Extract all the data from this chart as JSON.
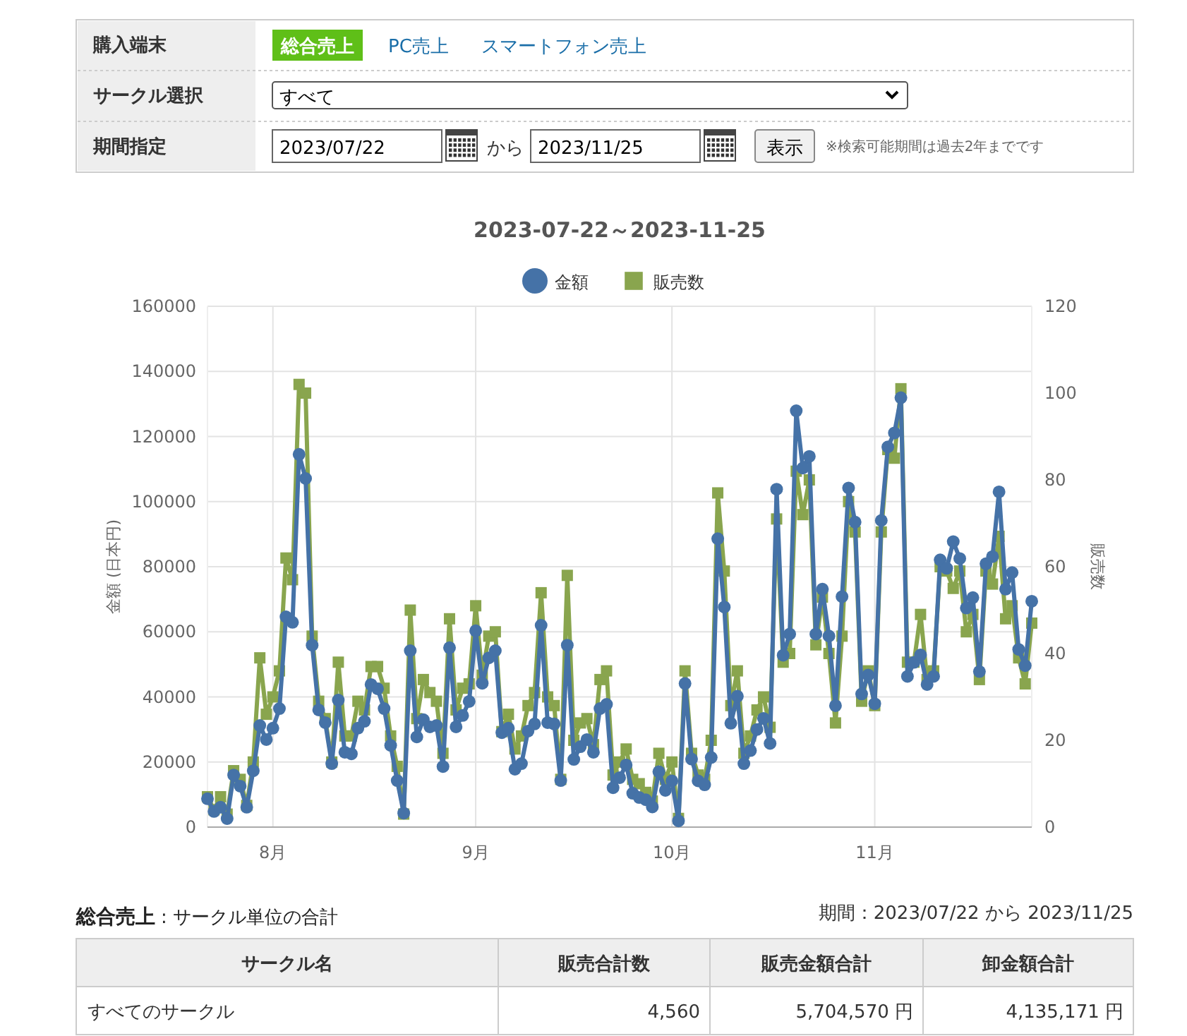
{
  "chart_data": [
    {
      "type": "other",
      "annotations": [
        "購入端末",
        "総合売上",
        "PC売上",
        "スマートフォン売上",
        "サークル選択",
        "すべて",
        "期間指定",
        "2023/07/22",
        "から",
        "2023/11/25",
        "表示",
        "※検索可能期間は過去2年までです"
      ]
    },
    {
      "type": "line",
      "title": "2023-07-22～2023-11-25",
      "ylabel": "金額 (日本円)",
      "y2label": "販売数",
      "legend": "top",
      "grid": true,
      "line_style": "solid",
      "x": [
        "2023-07-22",
        "2023-07-23",
        "2023-07-24",
        "2023-07-25",
        "2023-07-26",
        "2023-07-27",
        "2023-07-28",
        "2023-07-29",
        "2023-07-30",
        "2023-07-31",
        "2023-08-01",
        "2023-08-02",
        "2023-08-03",
        "2023-08-04",
        "2023-08-05",
        "2023-08-06",
        "2023-08-07",
        "2023-08-08",
        "2023-08-09",
        "2023-08-10",
        "2023-08-11",
        "2023-08-12",
        "2023-08-13",
        "2023-08-14",
        "2023-08-15",
        "2023-08-16",
        "2023-08-17",
        "2023-08-18",
        "2023-08-19",
        "2023-08-20",
        "2023-08-21",
        "2023-08-22",
        "2023-08-23",
        "2023-08-24",
        "2023-08-25",
        "2023-08-26",
        "2023-08-27",
        "2023-08-28",
        "2023-08-29",
        "2023-08-30",
        "2023-08-31",
        "2023-09-01",
        "2023-09-02",
        "2023-09-03",
        "2023-09-04",
        "2023-09-05",
        "2023-09-06",
        "2023-09-07",
        "2023-09-08",
        "2023-09-09",
        "2023-09-10",
        "2023-09-11",
        "2023-09-12",
        "2023-09-13",
        "2023-09-14",
        "2023-09-15",
        "2023-09-16",
        "2023-09-17",
        "2023-09-18",
        "2023-09-19",
        "2023-09-20",
        "2023-09-21",
        "2023-09-22",
        "2023-09-23",
        "2023-09-24",
        "2023-09-25",
        "2023-09-26",
        "2023-09-27",
        "2023-09-28",
        "2023-09-29",
        "2023-09-30",
        "2023-10-01",
        "2023-10-02",
        "2023-10-03",
        "2023-10-04",
        "2023-10-05",
        "2023-10-06",
        "2023-10-07",
        "2023-10-08",
        "2023-10-09",
        "2023-10-10",
        "2023-10-11",
        "2023-10-12",
        "2023-10-13",
        "2023-10-14",
        "2023-10-15",
        "2023-10-16",
        "2023-10-17",
        "2023-10-18",
        "2023-10-19",
        "2023-10-20",
        "2023-10-21",
        "2023-10-22",
        "2023-10-23",
        "2023-10-24",
        "2023-10-25",
        "2023-10-26",
        "2023-10-27",
        "2023-10-28",
        "2023-10-29",
        "2023-10-30",
        "2023-10-31",
        "2023-11-01",
        "2023-11-02",
        "2023-11-03",
        "2023-11-04",
        "2023-11-05",
        "2023-11-06",
        "2023-11-07",
        "2023-11-08",
        "2023-11-09",
        "2023-11-10",
        "2023-11-11",
        "2023-11-12",
        "2023-11-13",
        "2023-11-14",
        "2023-11-15",
        "2023-11-16",
        "2023-11-17",
        "2023-11-18",
        "2023-11-19",
        "2023-11-20",
        "2023-11-21",
        "2023-11-22",
        "2023-11-23",
        "2023-11-24",
        "2023-11-25"
      ],
      "xlim": [
        "2023-07-22",
        "2023-11-25"
      ],
      "xticks": [
        {
          "value": "2023-08-01",
          "label": "8月"
        },
        {
          "value": "2023-09-01",
          "label": "9月"
        },
        {
          "value": "2023-10-01",
          "label": "10月"
        },
        {
          "value": "2023-11-01",
          "label": "11月"
        }
      ],
      "ylim": [
        0,
        160000
      ],
      "yticks": [
        0,
        20000,
        40000,
        60000,
        80000,
        100000,
        120000,
        140000,
        160000
      ],
      "y2lim": [
        0,
        120
      ],
      "y2ticks": [
        0,
        20,
        40,
        60,
        80,
        100,
        120
      ],
      "series": [
        {
          "name": "販売数",
          "color": "#89a54e",
          "marker": "square",
          "axis": "y2",
          "values": [
            7,
            4,
            7,
            3,
            13,
            11,
            5,
            15,
            39,
            26,
            30,
            36,
            62,
            57,
            102,
            100,
            44,
            29,
            25,
            15,
            38,
            21,
            21,
            29,
            27,
            37,
            37,
            32,
            21,
            14,
            3,
            50,
            25,
            34,
            31,
            29,
            17,
            48,
            27,
            32,
            33,
            51,
            35,
            44,
            45,
            22,
            26,
            18,
            21,
            28,
            31,
            54,
            30,
            28,
            11,
            58,
            20,
            24,
            25,
            19,
            34,
            36,
            12,
            15,
            18,
            11,
            10,
            8,
            6,
            17,
            11,
            15,
            2,
            36,
            17,
            12,
            11,
            20,
            77,
            59,
            28,
            36,
            17,
            21,
            27,
            30,
            23,
            71,
            38,
            40,
            82,
            72,
            80,
            42,
            53,
            40,
            24,
            44,
            75,
            68,
            29,
            36,
            28,
            68,
            87,
            85,
            101,
            38,
            38,
            49,
            34,
            36,
            60,
            59,
            55,
            59,
            45,
            49,
            34,
            59,
            56,
            67,
            48,
            51,
            39,
            33,
            47
          ]
        },
        {
          "name": "金額",
          "color": "#4572a7",
          "marker": "circle",
          "axis": "y",
          "values": [
            8700,
            4800,
            6100,
            2600,
            16000,
            12600,
            6100,
            17300,
            31200,
            26900,
            30400,
            36400,
            64600,
            62900,
            114500,
            107100,
            55900,
            36000,
            32100,
            19500,
            39000,
            23000,
            22500,
            30400,
            32500,
            43800,
            42500,
            36400,
            25100,
            14300,
            4300,
            54200,
            27700,
            33000,
            30800,
            31200,
            18600,
            55100,
            30800,
            34300,
            38600,
            60300,
            44200,
            52000,
            54200,
            29000,
            30400,
            17800,
            19500,
            29500,
            31700,
            62000,
            32100,
            31700,
            14300,
            55900,
            20800,
            24700,
            26900,
            23000,
            36400,
            37700,
            12100,
            15200,
            19100,
            10400,
            9100,
            8400,
            6200,
            17000,
            11300,
            14200,
            1900,
            44100,
            20900,
            14200,
            13000,
            21400,
            88600,
            67600,
            31900,
            40200,
            19500,
            23500,
            30000,
            33400,
            25700,
            103800,
            52800,
            59300,
            127900,
            110300,
            113900,
            59300,
            73100,
            58700,
            37300,
            70800,
            104200,
            93700,
            40900,
            46700,
            37900,
            94200,
            116800,
            121100,
            131900,
            46300,
            50600,
            52900,
            43800,
            46300,
            82100,
            79500,
            87700,
            82500,
            67300,
            70500,
            47800,
            80900,
            83100,
            103000,
            73100,
            78200,
            54600,
            49600,
            69400
          ]
        }
      ]
    },
    {
      "type": "other",
      "title": "総合売上",
      "subtitle": ": サークル単位の合計",
      "annotations": [
        "期間：2023/07/22 から 2023/11/25",
        "サークル名",
        "販売合計数",
        "販売金額合計",
        "卸金額合計",
        "すべてのサークル",
        "4,560",
        "5,704,570 円",
        "4,135,171 円"
      ]
    }
  ]
}
